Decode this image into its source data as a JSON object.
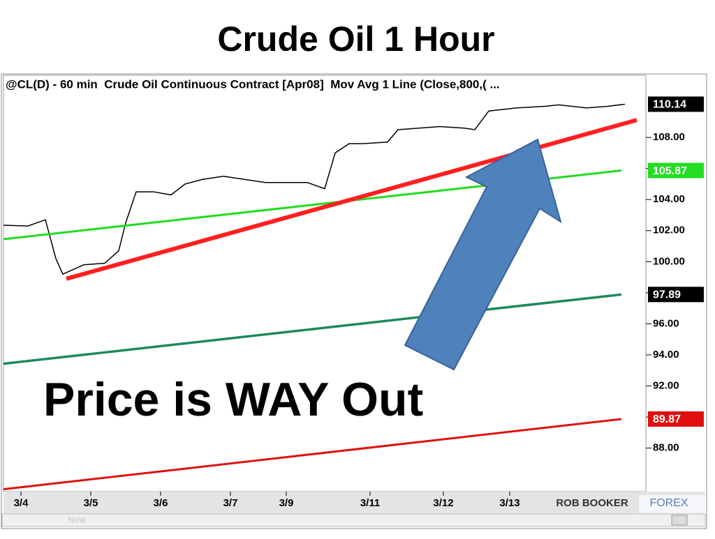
{
  "title": "Crude Oil 1 Hour",
  "chart_data": {
    "type": "line",
    "header": "@CL(D) - 60 min  Crude Oil Continuous Contract [Apr08]  Mov Avg 1 Line (Close,800,( ...",
    "annotation": "Price is WAY Out",
    "xlim": [
      0,
      184
    ],
    "xticks": [
      {
        "value": 5,
        "label": "3/4"
      },
      {
        "value": 25,
        "label": "3/5"
      },
      {
        "value": 45,
        "label": "3/6"
      },
      {
        "value": 65,
        "label": "3/7"
      },
      {
        "value": 81,
        "label": "3/9"
      },
      {
        "value": 105,
        "label": "3/11"
      },
      {
        "value": 126,
        "label": "3/12"
      },
      {
        "value": 145,
        "label": "3/13"
      }
    ],
    "ylim": [
      85.2,
      112
    ],
    "yticks": [
      {
        "value": 88,
        "label": "88.00"
      },
      {
        "value": 90,
        "label": "90.00"
      },
      {
        "value": 92,
        "label": "92.00"
      },
      {
        "value": 94,
        "label": "94.00"
      },
      {
        "value": 96,
        "label": "96.00"
      },
      {
        "value": 98,
        "label": "98.00"
      },
      {
        "value": 100,
        "label": "100.00"
      },
      {
        "value": 102,
        "label": "102.00"
      },
      {
        "value": 104,
        "label": "104.00"
      },
      {
        "value": 106,
        "label": "106.00"
      },
      {
        "value": 108,
        "label": "108.00"
      }
    ],
    "series": [
      {
        "color": "#000000",
        "label_color": "#000000",
        "x": [
          0,
          7,
          12,
          15,
          17,
          23,
          29,
          33,
          35,
          38,
          43,
          48,
          52,
          57,
          63,
          69,
          75,
          81,
          87,
          92,
          95,
          99,
          103,
          110,
          113,
          119,
          125,
          132,
          135,
          139,
          147,
          155,
          159,
          167,
          173,
          178
        ],
        "values": [
          102.35,
          102.3,
          102.7,
          100.2,
          99.2,
          99.8,
          99.9,
          100.7,
          102.5,
          104.5,
          104.5,
          104.3,
          105,
          105.3,
          105.5,
          105.3,
          105.1,
          105.1,
          105.1,
          104.7,
          107,
          107.6,
          107.6,
          107.7,
          108.5,
          108.6,
          108.7,
          108.6,
          108.5,
          109.7,
          109.9,
          110,
          110.1,
          109.9,
          110,
          110.14
        ]
      },
      {
        "color": "#22dd22",
        "label_color": "#22dd22",
        "x": [
          0,
          177
        ],
        "values": [
          101.45,
          105.87
        ]
      },
      {
        "color": "#1e8a5c",
        "label_color": "#000000",
        "x": [
          0,
          177
        ],
        "values": [
          93.43,
          97.89
        ]
      },
      {
        "color": "#e01010",
        "label_color": "#e01010",
        "x": [
          0,
          177
        ],
        "values": [
          85.35,
          89.87
        ]
      },
      {
        "color": "#ff2020",
        "x": [
          18,
          181.4
        ],
        "values": [
          98.9,
          109.12
        ]
      }
    ]
  },
  "logo": {
    "brand": "ROB BOOKER",
    "tag": "FOREX"
  },
  "footer_note": "Now"
}
